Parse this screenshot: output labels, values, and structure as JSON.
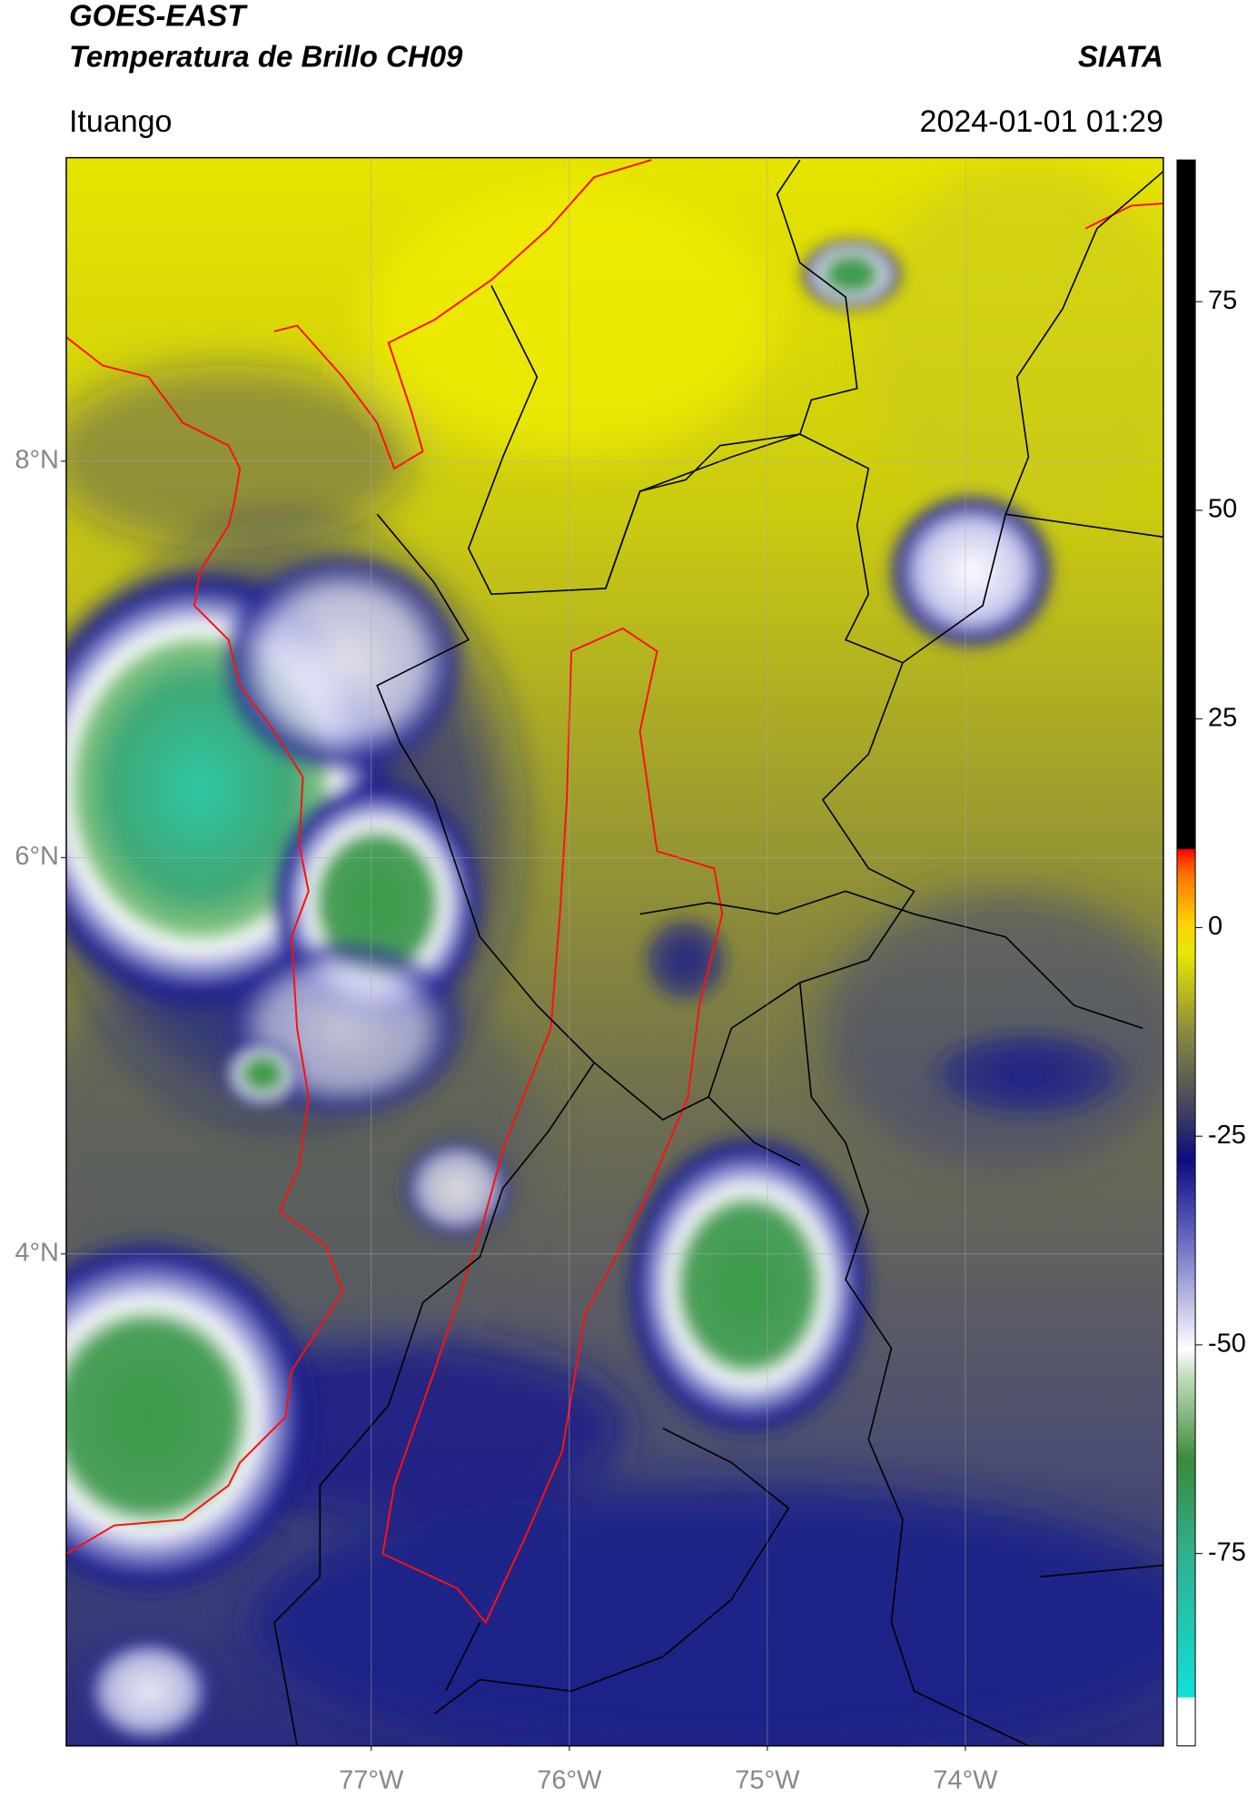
{
  "header": {
    "title": "GOES-EAST",
    "subtitle": "Temperatura de Brillo CH09",
    "organization": "SIATA",
    "location": "Ituango",
    "datetime": "2024-01-01 01:29"
  },
  "map": {
    "xlim": [
      -78.54,
      -73.0
    ],
    "ylim": [
      1.52,
      9.53
    ],
    "xticks": [
      {
        "value": -77,
        "label": "77°W"
      },
      {
        "value": -76,
        "label": "76°W"
      },
      {
        "value": -75,
        "label": "75°W"
      },
      {
        "value": -74,
        "label": "74°W"
      }
    ],
    "yticks": [
      {
        "value": 8,
        "label": "8°N"
      },
      {
        "value": 6,
        "label": "6°N"
      },
      {
        "value": 4,
        "label": "4°N"
      }
    ],
    "grid": true
  },
  "colorbar": {
    "lim": [
      -98,
      92
    ],
    "ticks": [
      75,
      50,
      25,
      0,
      -25,
      -50,
      -75
    ]
  }
}
